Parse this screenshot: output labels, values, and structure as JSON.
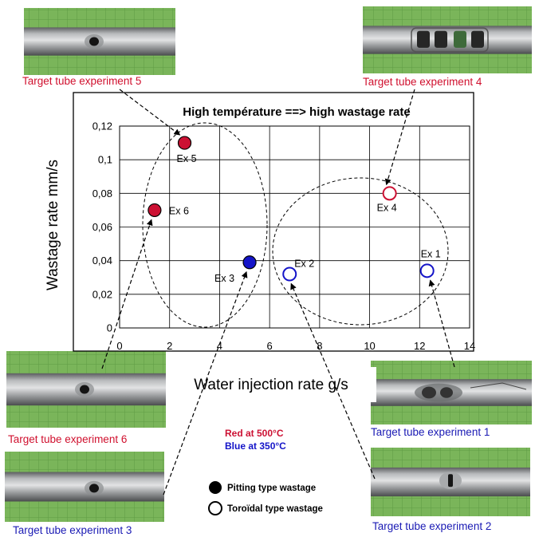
{
  "colors": {
    "red": "#cc1133",
    "blue": "#1414c8",
    "photo_label_red": "#d0102e",
    "photo_label_blue": "#1a1ab4",
    "green_background": "#7ab55a"
  },
  "photos": [
    {
      "experiment": 5,
      "label": "Target tube experiment 5",
      "color": "red",
      "defect": "pitting"
    },
    {
      "experiment": 4,
      "label": "Target tube experiment 4",
      "color": "red",
      "defect": "toroidal"
    },
    {
      "experiment": 6,
      "label": "Target tube experiment 6",
      "color": "red",
      "defect": "pitting"
    },
    {
      "experiment": 1,
      "label": "Target tube experiment 1",
      "color": "blue",
      "defect": "toroidal"
    },
    {
      "experiment": 3,
      "label": "Target tube experiment 3",
      "color": "blue",
      "defect": "pitting"
    },
    {
      "experiment": 2,
      "label": "Target tube experiment 2",
      "color": "blue",
      "defect": "toroidal"
    }
  ],
  "chart_data": {
    "type": "scatter",
    "title": "High température ==> high wastage rate",
    "xlabel": "Water injection rate g/s",
    "ylabel": "Wastage rate mm/s",
    "xlim": [
      0,
      14
    ],
    "ylim": [
      0,
      0.12
    ],
    "x_ticks": [
      0,
      2,
      4,
      6,
      8,
      10,
      12,
      14
    ],
    "x_tick_labels": [
      "0",
      "2",
      "4",
      "6",
      "8",
      "10",
      "12",
      "14"
    ],
    "y_ticks": [
      0,
      0.02,
      0.04,
      0.06,
      0.08,
      0.1,
      0.12
    ],
    "y_tick_labels": [
      "0",
      "0,02",
      "0,04",
      "0,06",
      "0,08",
      "0,1",
      "0,12"
    ],
    "grid": true,
    "points": [
      {
        "label": "Ex 1",
        "x": 12.3,
        "y": 0.034,
        "color": "blue",
        "fill": "open"
      },
      {
        "label": "Ex 2",
        "x": 6.8,
        "y": 0.032,
        "color": "blue",
        "fill": "open"
      },
      {
        "label": "Ex 3",
        "x": 5.2,
        "y": 0.039,
        "color": "blue",
        "fill": "filled"
      },
      {
        "label": "Ex 4",
        "x": 10.8,
        "y": 0.08,
        "color": "red",
        "fill": "open"
      },
      {
        "label": "Ex 5",
        "x": 2.6,
        "y": 0.11,
        "color": "red",
        "fill": "filled"
      },
      {
        "label": "Ex 6",
        "x": 1.4,
        "y": 0.07,
        "color": "red",
        "fill": "filled"
      }
    ]
  },
  "legend": {
    "red_text": "Red at 500°C",
    "blue_text": "Blue at 350°C",
    "filled_text": "Pitting type wastage",
    "open_text": "Toroïdal type wastage"
  }
}
